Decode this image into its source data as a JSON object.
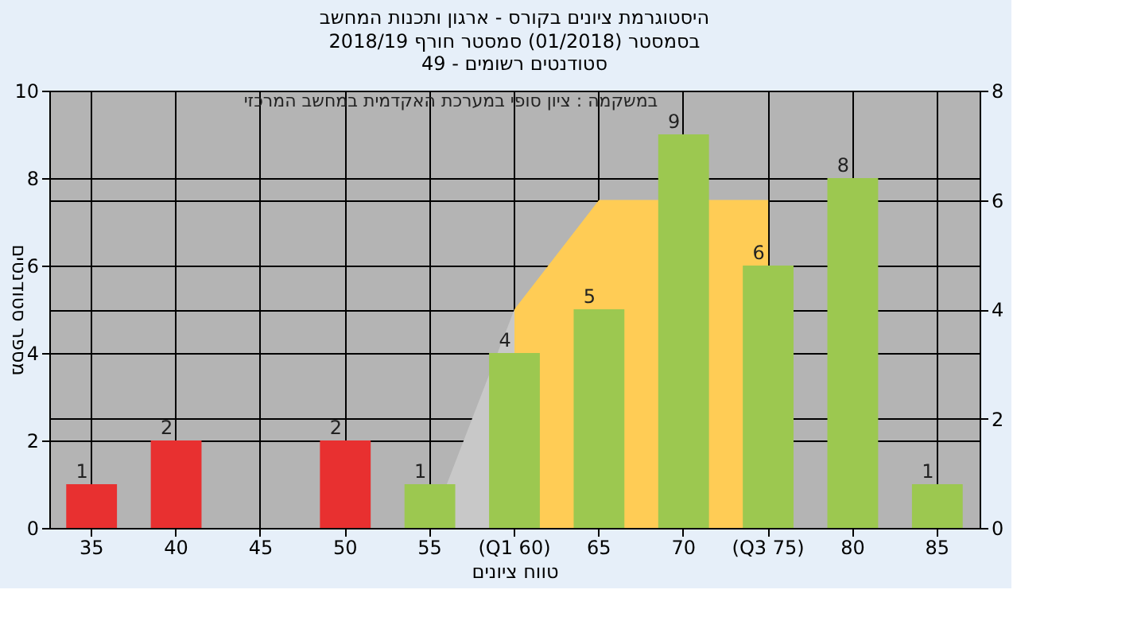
{
  "chart_data": {
    "type": "bar",
    "title": "היסטוגרמת ציונים בקורס - ארגון ותכנות המחשב",
    "subtitle": "בסמסטר  (01/2018)  סמסטר חורף 2018/19\nסטודנטים רשומים - 49",
    "xlabel": "טווח ציונים",
    "ylabel": "מספר סטודנטים",
    "annotations": [
      "במשקמה : ציון סופי במערכת האקדמית במחשב המרכזי"
    ],
    "categories": [
      "35",
      "40",
      "45",
      "50",
      "55",
      "(Q1 60)",
      "65",
      "70",
      "(Q3 75)",
      "80",
      "85"
    ],
    "series": [
      {
        "type": "area",
        "axis": "y2",
        "color": "#ffcc55",
        "values": [
          null,
          null,
          null,
          null,
          null,
          4,
          6,
          null,
          6,
          null,
          null
        ]
      },
      {
        "type": "area",
        "axis": "y2",
        "color": "#c8c8c8",
        "values": [
          null,
          null,
          null,
          null,
          0,
          4,
          null,
          null,
          null,
          null,
          null
        ]
      },
      {
        "values": [
          1,
          2,
          0,
          2,
          1,
          4,
          5,
          9,
          6,
          8,
          1
        ],
        "colors": [
          "#e83030",
          "#e83030",
          "#e83030",
          "#e83030",
          "#9cc850",
          "#9cc850",
          "#9cc850",
          "#9cc850",
          "#9cc850",
          "#9cc850",
          "#9cc850"
        ],
        "value_labels": [
          "1",
          "2",
          null,
          "2",
          "1",
          "4",
          "5",
          "9",
          "6",
          "8",
          "1"
        ]
      }
    ],
    "ylim": [
      0,
      10
    ],
    "yticks": [
      0,
      2,
      4,
      6,
      8,
      10
    ],
    "y2lim": [
      0,
      8
    ],
    "y2ticks": [
      0,
      2,
      4,
      6,
      8
    ],
    "grid": true
  }
}
